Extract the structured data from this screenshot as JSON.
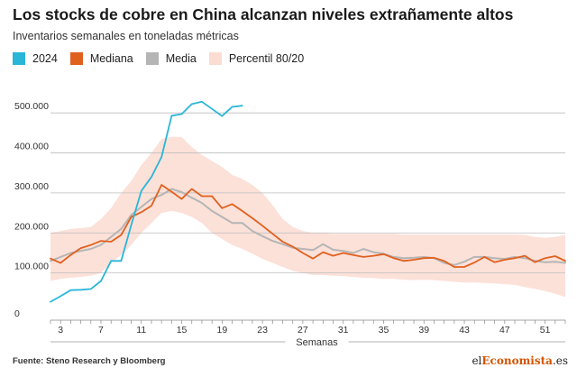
{
  "chart_data": {
    "type": "line",
    "title": "Los stocks de cobre en China alcanzan niveles extrañamente altos",
    "subtitle": "Inventarios semanales en toneladas métricas",
    "xlabel": "Semanas",
    "ylabel": "",
    "x_ticks": [
      "3",
      "7",
      "11",
      "15",
      "19",
      "23",
      "27",
      "31",
      "35",
      "39",
      "43",
      "47",
      "51"
    ],
    "y_ticks": [
      "0",
      "100.000",
      "200.000",
      "300.000",
      "400.000",
      "500.000"
    ],
    "xlim": [
      2,
      53
    ],
    "ylim": [
      0,
      550000
    ],
    "grid": true,
    "legend_position": "top-left",
    "series": [
      {
        "name": "2024",
        "color": "#29b6d8",
        "x": [
          2,
          3,
          4,
          5,
          6,
          7,
          8,
          9,
          10,
          11,
          12,
          13,
          14,
          15,
          16,
          17,
          18,
          19,
          20,
          21
        ],
        "values": [
          28000,
          42000,
          57000,
          58000,
          60000,
          80000,
          130000,
          130000,
          220000,
          305000,
          340000,
          390000,
          493000,
          497000,
          522000,
          528000,
          510000,
          492000,
          515000,
          518000
        ]
      },
      {
        "name": "Mediana",
        "color": "#e0601e",
        "x": [
          2,
          3,
          4,
          5,
          6,
          7,
          8,
          9,
          10,
          11,
          12,
          13,
          14,
          15,
          16,
          17,
          18,
          19,
          20,
          21,
          22,
          23,
          24,
          25,
          26,
          27,
          28,
          29,
          30,
          31,
          32,
          33,
          34,
          35,
          36,
          37,
          38,
          39,
          40,
          41,
          42,
          43,
          44,
          45,
          46,
          47,
          48,
          49,
          50,
          51,
          52,
          53
        ],
        "values": [
          136000,
          125000,
          145000,
          162000,
          170000,
          180000,
          178000,
          195000,
          240000,
          252000,
          268000,
          320000,
          303000,
          285000,
          310000,
          292000,
          292000,
          262000,
          272000,
          255000,
          237000,
          218000,
          198000,
          178000,
          166000,
          150000,
          136000,
          152000,
          143000,
          150000,
          145000,
          140000,
          143000,
          147000,
          137000,
          130000,
          133000,
          137000,
          138000,
          130000,
          115000,
          115000,
          126000,
          140000,
          127000,
          133000,
          137000,
          143000,
          127000,
          137000,
          142000,
          130000
        ]
      },
      {
        "name": "Media",
        "color": "#b5b5b5",
        "x": [
          2,
          3,
          4,
          5,
          6,
          7,
          8,
          9,
          10,
          11,
          12,
          13,
          14,
          15,
          16,
          17,
          18,
          19,
          20,
          21,
          22,
          23,
          24,
          25,
          26,
          27,
          28,
          29,
          30,
          31,
          32,
          33,
          34,
          35,
          36,
          37,
          38,
          39,
          40,
          41,
          42,
          43,
          44,
          45,
          46,
          47,
          48,
          49,
          50,
          51,
          52,
          53
        ],
        "values": [
          130000,
          140000,
          150000,
          155000,
          160000,
          170000,
          190000,
          210000,
          245000,
          265000,
          285000,
          295000,
          310000,
          302000,
          288000,
          275000,
          255000,
          240000,
          225000,
          225000,
          205000,
          192000,
          180000,
          172000,
          163000,
          160000,
          157000,
          172000,
          158000,
          155000,
          150000,
          160000,
          152000,
          148000,
          140000,
          137000,
          138000,
          140000,
          137000,
          125000,
          120000,
          128000,
          140000,
          140000,
          137000,
          135000,
          140000,
          137000,
          130000,
          127000,
          128000,
          125000
        ]
      },
      {
        "name": "Percentil 80/20",
        "color": "#fbdcd2",
        "x": [
          2,
          3,
          4,
          5,
          6,
          7,
          8,
          9,
          10,
          11,
          12,
          13,
          14,
          15,
          16,
          17,
          18,
          19,
          20,
          21,
          22,
          23,
          24,
          25,
          26,
          27,
          28,
          29,
          30,
          31,
          32,
          33,
          34,
          35,
          36,
          37,
          38,
          39,
          40,
          41,
          42,
          43,
          44,
          45,
          46,
          47,
          48,
          49,
          50,
          51,
          52,
          53
        ],
        "upper": [
          200000,
          205000,
          210000,
          212000,
          215000,
          235000,
          262000,
          300000,
          330000,
          370000,
          400000,
          435000,
          440000,
          440000,
          415000,
          395000,
          380000,
          365000,
          345000,
          335000,
          320000,
          300000,
          270000,
          235000,
          215000,
          205000,
          200000,
          200000,
          198000,
          198000,
          198000,
          198000,
          198000,
          198000,
          198000,
          196000,
          196000,
          196000,
          196000,
          196000,
          196000,
          196000,
          196000,
          196000,
          196000,
          196000,
          196000,
          195000,
          190000,
          188000,
          190000,
          195000
        ],
        "lower": [
          80000,
          85000,
          88000,
          90000,
          93000,
          100000,
          125000,
          145000,
          170000,
          200000,
          225000,
          250000,
          255000,
          250000,
          240000,
          225000,
          200000,
          185000,
          170000,
          160000,
          148000,
          135000,
          125000,
          115000,
          105000,
          100000,
          95000,
          95000,
          93000,
          92000,
          90000,
          88000,
          87000,
          85000,
          85000,
          83000,
          82000,
          83000,
          82000,
          80000,
          78000,
          76000,
          76000,
          75000,
          74000,
          72000,
          70000,
          65000,
          60000,
          55000,
          48000,
          40000
        ]
      }
    ]
  },
  "legend": {
    "items": [
      {
        "label": "2024",
        "color": "#29b6d8"
      },
      {
        "label": "Mediana",
        "color": "#e0601e"
      },
      {
        "label": "Media",
        "color": "#b5b5b5"
      },
      {
        "label": "Percentil 80/20",
        "color": "#fbdcd2"
      }
    ]
  },
  "footer": {
    "source": "Fuente: Steno Research y Bloomberg",
    "logo_prefix": "el",
    "logo_highlight": "Economista",
    "logo_suffix": ".es"
  }
}
